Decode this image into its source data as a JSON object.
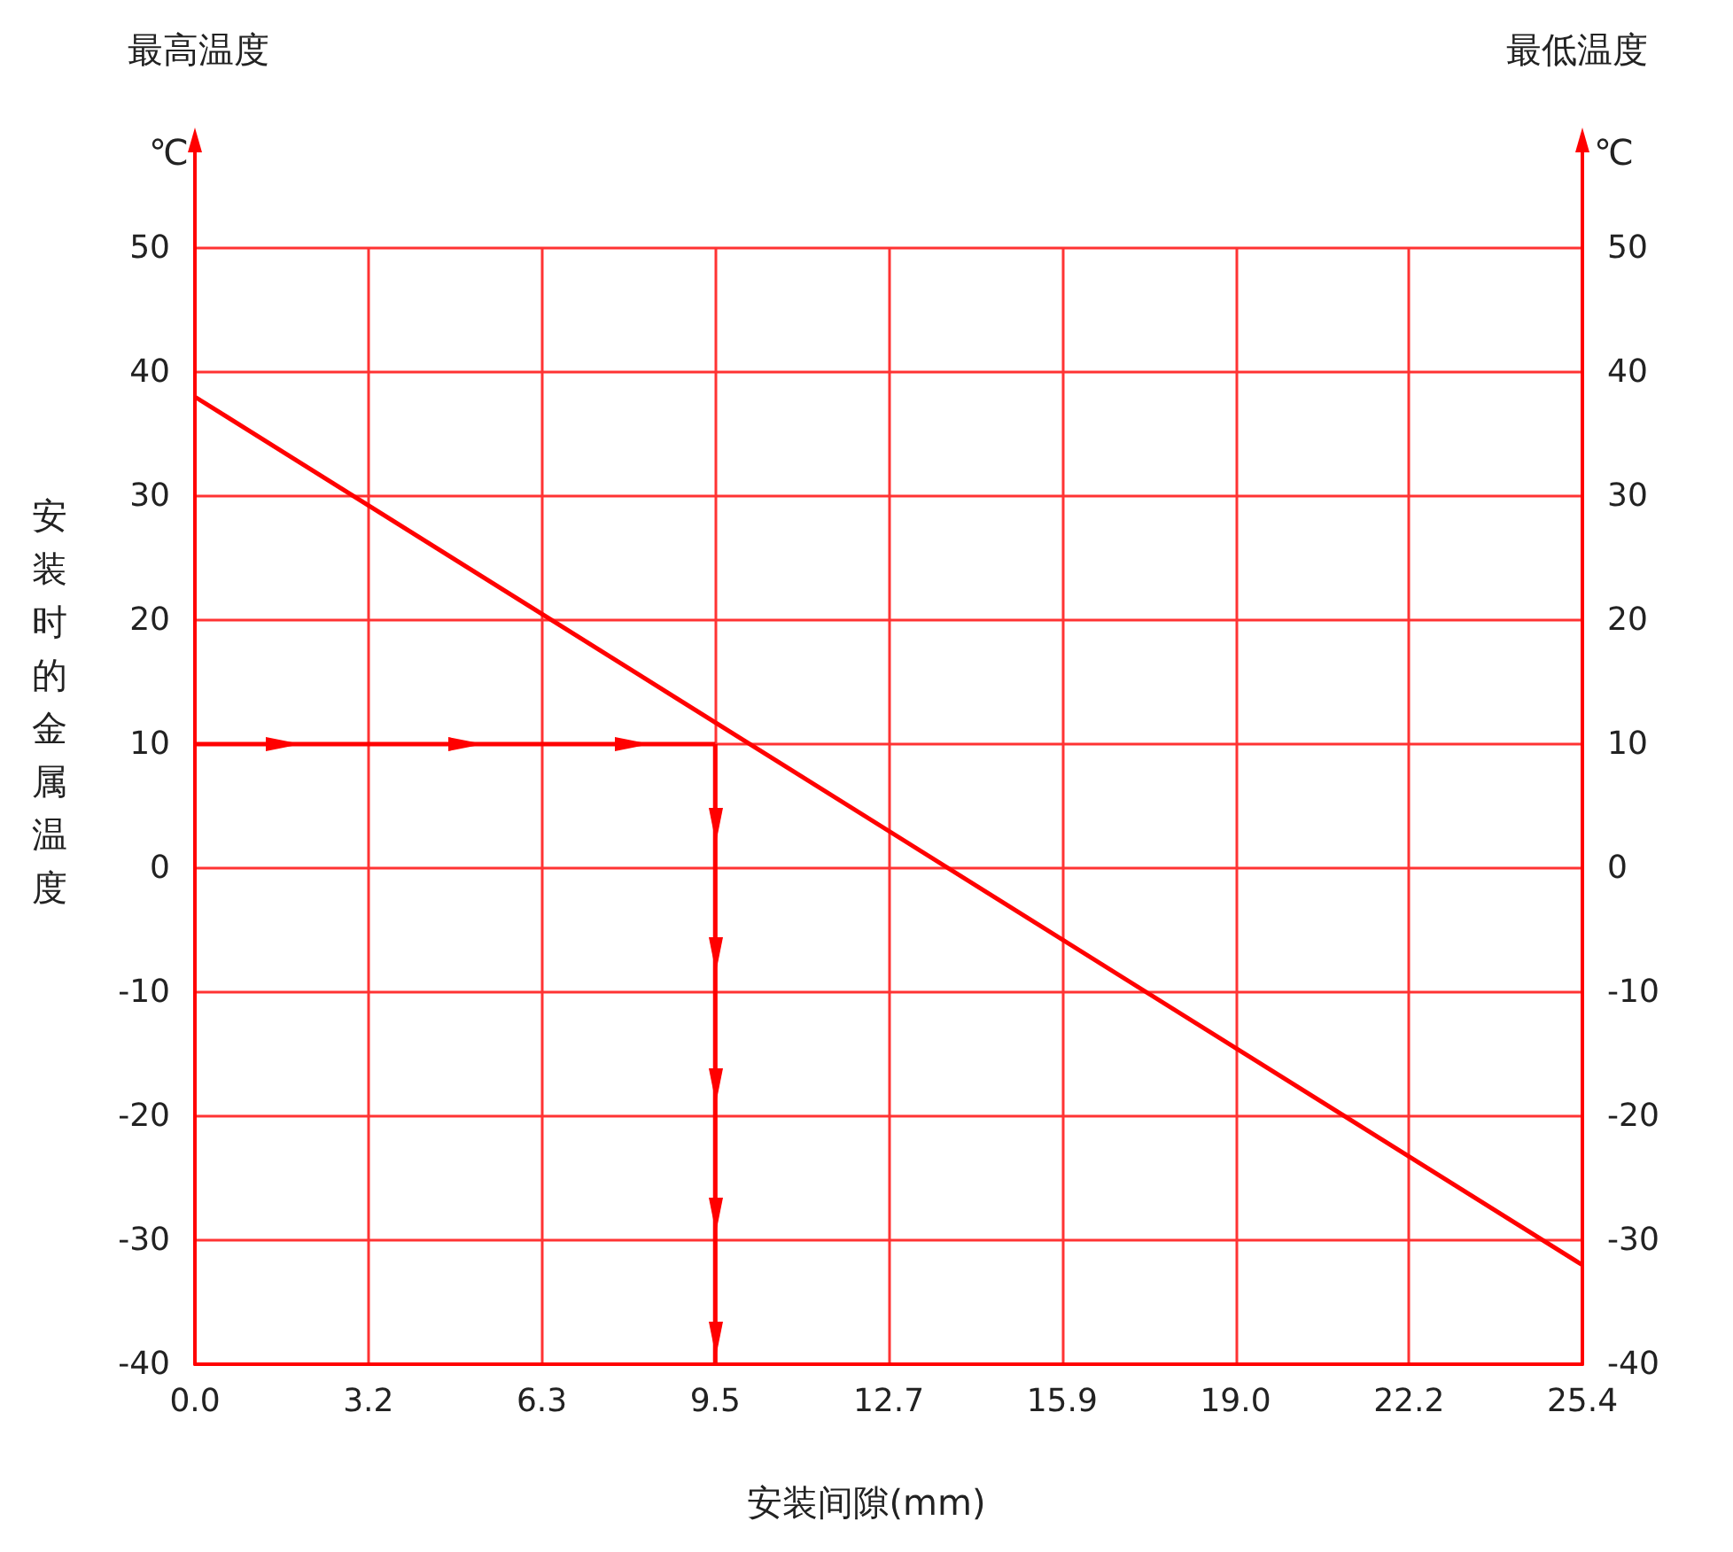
{
  "chart_data": {
    "type": "line",
    "xlabel": "安装间隙(mm)",
    "ylabel": "安装时的金属温度",
    "annotations": [
      "最高温度",
      "最低温度",
      "℃",
      "℃"
    ],
    "xlim": [
      0,
      25.4
    ],
    "xticks": [
      {
        "value": 0,
        "label": "0.0"
      },
      {
        "value": 3.175,
        "label": "3.2"
      },
      {
        "value": 6.35,
        "label": "6.3"
      },
      {
        "value": 9.525,
        "label": "9.5"
      },
      {
        "value": 12.7,
        "label": "12.7"
      },
      {
        "value": 15.875,
        "label": "15.9"
      },
      {
        "value": 19.05,
        "label": "19.0"
      },
      {
        "value": 22.225,
        "label": "22.2"
      },
      {
        "value": 25.4,
        "label": "25.4"
      }
    ],
    "ylim": [
      -40,
      50
    ],
    "yticks": [
      -40,
      -30,
      -20,
      -10,
      0,
      10,
      20,
      30,
      40,
      50
    ],
    "y2lim": [
      -40,
      50
    ],
    "y2ticks": [
      -40,
      -30,
      -20,
      -10,
      0,
      10,
      20,
      30,
      40,
      50
    ],
    "grid": true,
    "marker": "none",
    "line_style": "solid",
    "series": [
      {
        "color": "#ff0000",
        "x": [
          0,
          25.4
        ],
        "values": [
          38,
          -32
        ]
      },
      {
        "color": "#ff0000",
        "x": [
          0,
          9.525
        ],
        "values": [
          10,
          10
        ]
      },
      {
        "color": "#ff0000",
        "x": [
          9.525,
          9.525
        ],
        "values": [
          10,
          -40
        ]
      }
    ]
  }
}
